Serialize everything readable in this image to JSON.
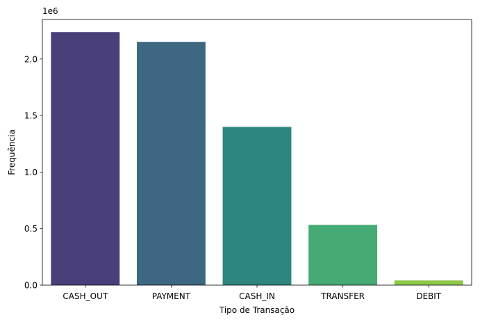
{
  "chart_data": {
    "type": "bar",
    "categories": [
      "CASH_OUT",
      "PAYMENT",
      "CASH_IN",
      "TRANSFER",
      "DEBIT"
    ],
    "values": [
      2237500,
      2151495,
      1399284,
      532909,
      41432
    ],
    "colors": [
      "#4a4079",
      "#3d6882",
      "#2e8680",
      "#45aa73",
      "#8ec847"
    ],
    "xlabel": "Tipo de Transação",
    "ylabel": "Frequência",
    "offset_text": "1e6",
    "ylim": [
      0,
      2349375
    ],
    "yticks": [
      0,
      500000,
      1000000,
      1500000,
      2000000
    ],
    "ytick_labels": [
      "0.0",
      "0.5",
      "1.0",
      "1.5",
      "2.0"
    ],
    "grid": false
  }
}
